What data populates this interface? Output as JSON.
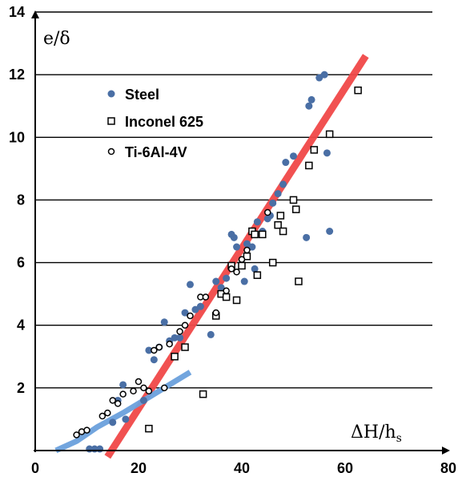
{
  "chart_data": {
    "type": "scatter",
    "title": "",
    "xlabel": "ΔH/h",
    "xlabel_sub": "s",
    "ylabel": "e/δ",
    "xlim": [
      0,
      80
    ],
    "ylim": [
      0,
      14
    ],
    "x_ticks": [
      "0",
      "20",
      "40",
      "60",
      "80"
    ],
    "y_ticks": [
      "2",
      "4",
      "6",
      "8",
      "10",
      "12",
      "14"
    ],
    "grid": "horizontal",
    "legend_position": "top-left",
    "colors": {
      "steel": "#4a6fa5",
      "red_fit": "#f04848",
      "blue_fit": "#6aa0dc"
    },
    "series": [
      {
        "name": "Steel",
        "marker": "filled-circle",
        "points": [
          [
            10.5,
            0.05
          ],
          [
            11.5,
            0.05
          ],
          [
            12.5,
            0.05
          ],
          [
            15,
            0.9
          ],
          [
            16,
            1.6
          ],
          [
            17,
            2.1
          ],
          [
            17.5,
            1.0
          ],
          [
            21,
            1.6
          ],
          [
            22,
            3.2
          ],
          [
            23,
            2.9
          ],
          [
            24,
            3.3
          ],
          [
            25,
            4.1
          ],
          [
            26,
            3.5
          ],
          [
            27,
            3.6
          ],
          [
            28,
            3.6
          ],
          [
            29,
            4.4
          ],
          [
            30,
            5.3
          ],
          [
            31,
            4.5
          ],
          [
            32,
            4.6
          ],
          [
            34,
            3.7
          ],
          [
            35,
            5.4
          ],
          [
            36,
            5.2
          ],
          [
            37,
            5.5
          ],
          [
            38,
            6.9
          ],
          [
            38.5,
            6.8
          ],
          [
            39,
            6.5
          ],
          [
            40,
            5.9
          ],
          [
            40.5,
            5.4
          ],
          [
            41,
            6.6
          ],
          [
            42,
            6.5
          ],
          [
            42.5,
            5.8
          ],
          [
            43,
            7.3
          ],
          [
            44,
            7.0
          ],
          [
            45,
            7.4
          ],
          [
            45.5,
            7.5
          ],
          [
            46,
            7.9
          ],
          [
            47,
            8.2
          ],
          [
            48,
            8.5
          ],
          [
            48.5,
            9.2
          ],
          [
            50,
            9.4
          ],
          [
            52.5,
            6.8
          ],
          [
            53,
            11.0
          ],
          [
            53.5,
            11.2
          ],
          [
            55,
            11.9
          ],
          [
            56,
            12.0
          ],
          [
            56.5,
            9.5
          ],
          [
            57,
            7.0
          ]
        ]
      },
      {
        "name": "Inconel 625",
        "marker": "open-square",
        "points": [
          [
            22,
            0.7
          ],
          [
            27,
            3.0
          ],
          [
            29,
            3.3
          ],
          [
            32.5,
            1.8
          ],
          [
            35,
            4.3
          ],
          [
            36,
            5.0
          ],
          [
            37,
            4.9
          ],
          [
            38,
            5.9
          ],
          [
            39,
            4.8
          ],
          [
            40,
            5.9
          ],
          [
            41,
            6.2
          ],
          [
            42,
            7.0
          ],
          [
            42.5,
            6.9
          ],
          [
            43,
            5.6
          ],
          [
            44,
            6.9
          ],
          [
            46,
            6.0
          ],
          [
            47,
            7.2
          ],
          [
            47.5,
            7.5
          ],
          [
            48,
            7.0
          ],
          [
            50,
            8.0
          ],
          [
            50.5,
            7.7
          ],
          [
            51,
            5.4
          ],
          [
            53,
            9.1
          ],
          [
            54,
            9.6
          ],
          [
            57,
            10.1
          ],
          [
            62.5,
            11.5
          ]
        ]
      },
      {
        "name": "Ti-6Al-4V",
        "marker": "open-circle",
        "points": [
          [
            8,
            0.5
          ],
          [
            9,
            0.6
          ],
          [
            10,
            0.65
          ],
          [
            13,
            1.1
          ],
          [
            14,
            1.2
          ],
          [
            15,
            1.6
          ],
          [
            16,
            1.5
          ],
          [
            17,
            1.8
          ],
          [
            19,
            1.9
          ],
          [
            20,
            2.2
          ],
          [
            21,
            2.0
          ],
          [
            22,
            1.9
          ],
          [
            23,
            3.2
          ],
          [
            24,
            3.3
          ],
          [
            25,
            2.0
          ],
          [
            26,
            3.4
          ],
          [
            28,
            3.8
          ],
          [
            29,
            4.0
          ],
          [
            30,
            4.3
          ],
          [
            32,
            4.9
          ],
          [
            33,
            4.9
          ],
          [
            35,
            4.4
          ],
          [
            37,
            5.1
          ],
          [
            38,
            5.8
          ],
          [
            39,
            5.7
          ],
          [
            40,
            6.1
          ],
          [
            41,
            6.4
          ],
          [
            45,
            7.6
          ]
        ]
      }
    ],
    "fit_lines": [
      {
        "color_key": "red_fit",
        "points": [
          [
            14,
            -0.2
          ],
          [
            64,
            12.6
          ]
        ]
      },
      {
        "color_key": "blue_fit",
        "points": [
          [
            4,
            0
          ],
          [
            8,
            0.3
          ],
          [
            12,
            0.75
          ],
          [
            17,
            1.2
          ],
          [
            22,
            1.7
          ],
          [
            26,
            2.1
          ],
          [
            30,
            2.5
          ]
        ]
      }
    ]
  }
}
